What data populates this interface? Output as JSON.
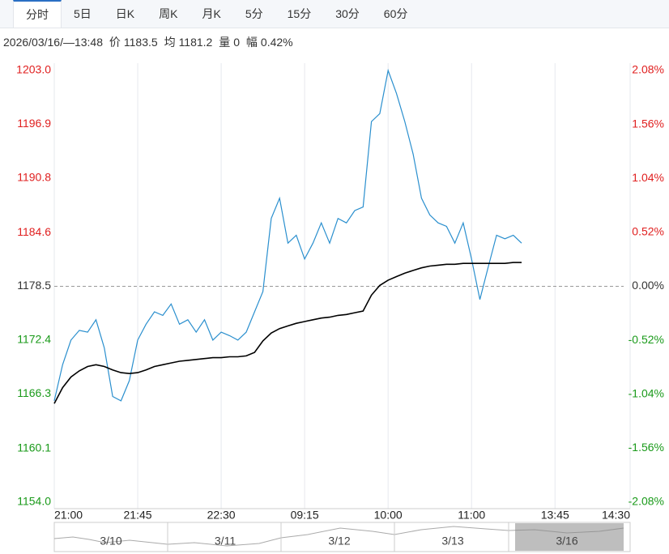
{
  "tabs": [
    "分时",
    "5日",
    "日K",
    "周K",
    "月K",
    "5分",
    "15分",
    "30分",
    "60分"
  ],
  "info": {
    "time": "2026/03/16/—13:48",
    "price_label": "价",
    "price": "1183.5",
    "avg_label": "均",
    "avg": "1181.2",
    "vol_label": "量",
    "vol": "0",
    "amp_label": "幅",
    "amp": "0.42%"
  },
  "chart_data": {
    "type": "line",
    "x": [
      0,
      0.1,
      0.2,
      0.3,
      0.4,
      0.5,
      0.6,
      0.7,
      0.8,
      0.9,
      1,
      1.1,
      1.2,
      1.3,
      1.4,
      1.5,
      1.6,
      1.7,
      1.8,
      1.9,
      2,
      2.1,
      2.2,
      2.3,
      2.4,
      2.5,
      2.6,
      2.7,
      2.8,
      2.9,
      3,
      3.1,
      3.2,
      3.3,
      3.4,
      3.5,
      3.6,
      3.7,
      3.8,
      3.9,
      4,
      4.1,
      4.2,
      4.3,
      4.4,
      4.5,
      4.6,
      4.7,
      4.8,
      4.9,
      5,
      5.1,
      5.2,
      5.3,
      5.4,
      5.5,
      5.6
    ],
    "series": [
      {
        "color": "#2a8fce",
        "values": [
          1165.5,
          1169.6,
          1172.4,
          1173.5,
          1173.3,
          1174.7,
          1171.5,
          1166.0,
          1165.5,
          1167.8,
          1172.4,
          1174.2,
          1175.6,
          1175.2,
          1176.5,
          1174.2,
          1174.7,
          1173.3,
          1174.7,
          1172.4,
          1173.3,
          1172.9,
          1172.4,
          1173.3,
          1175.6,
          1177.9,
          1186.2,
          1188.5,
          1183.4,
          1184.3,
          1181.6,
          1183.4,
          1185.7,
          1183.4,
          1186.2,
          1185.7,
          1187.1,
          1187.5,
          1197.2,
          1198.1,
          1203.0,
          1200.4,
          1197.2,
          1193.5,
          1188.5,
          1186.6,
          1185.7,
          1185.3,
          1183.4,
          1185.7,
          1181.6,
          1177.0,
          1180.7,
          1184.3,
          1183.9,
          1184.3,
          1183.4
        ]
      },
      {
        "color": "#000000",
        "values": [
          1165.2,
          1167.0,
          1168.2,
          1168.9,
          1169.4,
          1169.6,
          1169.4,
          1169.0,
          1168.7,
          1168.6,
          1168.7,
          1169.0,
          1169.4,
          1169.6,
          1169.8,
          1170.0,
          1170.1,
          1170.2,
          1170.3,
          1170.4,
          1170.4,
          1170.5,
          1170.5,
          1170.6,
          1171.0,
          1172.3,
          1173.2,
          1173.7,
          1174.0,
          1174.3,
          1174.5,
          1174.7,
          1174.9,
          1175.0,
          1175.2,
          1175.3,
          1175.5,
          1175.7,
          1177.5,
          1178.6,
          1179.2,
          1179.6,
          1180.0,
          1180.3,
          1180.6,
          1180.8,
          1180.9,
          1181.0,
          1181.0,
          1181.1,
          1181.1,
          1181.1,
          1181.1,
          1181.1,
          1181.1,
          1181.2,
          1181.2
        ]
      }
    ],
    "xlim": [
      0,
      6.9
    ],
    "xticks": [
      {
        "value": 0,
        "label": "21:00"
      },
      {
        "value": 1,
        "label": "21:45"
      },
      {
        "value": 2,
        "label": "22:30"
      },
      {
        "value": 3,
        "label": "09:15"
      },
      {
        "value": 4,
        "label": "10:00"
      },
      {
        "value": 5,
        "label": "11:00"
      },
      {
        "value": 6,
        "label": "13:45"
      },
      {
        "value": 6.9,
        "label": "14:30"
      }
    ],
    "ylim": [
      1154,
      1203
    ],
    "yticks": [
      {
        "value": 1203,
        "label": "1203.0"
      },
      {
        "value": 1196.9,
        "label": "1196.9"
      },
      {
        "value": 1190.8,
        "label": "1190.8"
      },
      {
        "value": 1184.6,
        "label": "1184.6"
      },
      {
        "value": 1178.5,
        "label": "1178.5"
      },
      {
        "value": 1172.4,
        "label": "1172.4"
      },
      {
        "value": 1166.3,
        "label": "1166.3"
      },
      {
        "value": 1160.1,
        "label": "1160.1"
      },
      {
        "value": 1154,
        "label": "1154.0"
      }
    ],
    "y2lim": [
      -2.08,
      2.08
    ],
    "y2ticks": [
      {
        "value": 2.08,
        "label": "2.08%"
      },
      {
        "value": 1.56,
        "label": "1.56%"
      },
      {
        "value": 1.04,
        "label": "1.04%"
      },
      {
        "value": 0.52,
        "label": "0.52%"
      },
      {
        "value": 0,
        "label": "0.00%"
      },
      {
        "value": -0.52,
        "label": "-0.52%"
      },
      {
        "value": -1.04,
        "label": "-1.04%"
      },
      {
        "value": -1.56,
        "label": "-1.56%"
      },
      {
        "value": -2.08,
        "label": "-2.08%"
      }
    ],
    "baseline": 1178.5,
    "up_color": "#e02020",
    "down_color": "#1a9a1a",
    "flat_color": "#333333",
    "grid": true
  },
  "navigator": {
    "dates": [
      "3/10",
      "3/11",
      "3/12",
      "3/13",
      "3/16"
    ]
  }
}
